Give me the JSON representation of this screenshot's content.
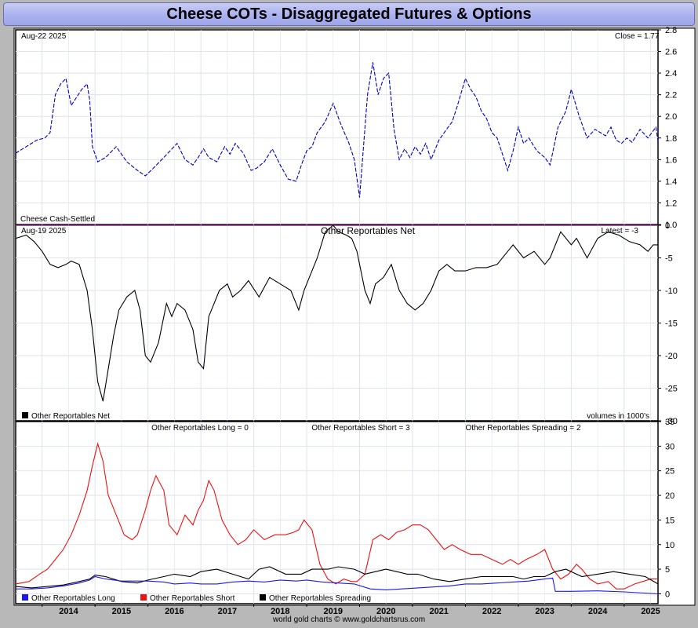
{
  "title": "Cheese COTs - Disaggregated Futures & Options",
  "footer": "world gold charts © www.goldchartsrus.com",
  "colors": {
    "price": "#0000c0",
    "net": "#000000",
    "long": "#1a1ae6",
    "short": "#ee1111",
    "spreading": "#000000",
    "zeroline": "#d040c0",
    "grid": "#dde2ec"
  },
  "chart_data": [
    {
      "type": "line",
      "id": "price",
      "date_label": "Aug-22  2025",
      "latest_label": "Close = 1.77",
      "legend": "Cheese Cash-Settled",
      "ylim": [
        1.0,
        2.8
      ],
      "yticks": [
        "1.0",
        "1.2",
        "1.4",
        "1.6",
        "1.8",
        "2.0",
        "2.2",
        "2.4",
        "2.6",
        "2.8"
      ],
      "series": [
        {
          "x": [
            2013.5,
            2013.7,
            2013.9,
            2014.05,
            2014.15,
            2014.25,
            2014.35,
            2014.45,
            2014.55,
            2014.75,
            2014.85,
            2014.9,
            2014.95,
            2015.05,
            2015.2,
            2015.4,
            2015.6,
            2015.8,
            2015.95,
            2016.1,
            2016.3,
            2016.55,
            2016.7,
            2016.85,
            2016.95,
            2017.05,
            2017.15,
            2017.3,
            2017.45,
            2017.55,
            2017.65,
            2017.8,
            2017.95,
            2018.05,
            2018.2,
            2018.35,
            2018.5,
            2018.65,
            2018.8,
            2018.9,
            2019.0,
            2019.1,
            2019.2,
            2019.35,
            2019.5,
            2019.65,
            2019.8,
            2019.9,
            2020.0,
            2020.15,
            2020.25,
            2020.35,
            2020.45,
            2020.55,
            2020.65,
            2020.75,
            2020.85,
            2020.95,
            2021.05,
            2021.15,
            2021.25,
            2021.35,
            2021.5,
            2021.6,
            2021.75,
            2021.85,
            2022.0,
            2022.1,
            2022.2,
            2022.3,
            2022.4,
            2022.5,
            2022.6,
            2022.7,
            2022.8,
            2022.9,
            2023.0,
            2023.1,
            2023.2,
            2023.35,
            2023.5,
            2023.6,
            2023.75,
            2023.9,
            2024.0,
            2024.15,
            2024.3,
            2024.45,
            2024.55,
            2024.65,
            2024.75,
            2024.85,
            2024.95,
            2025.05,
            2025.15,
            2025.3,
            2025.45,
            2025.6,
            2025.64
          ],
          "y": [
            1.66,
            1.72,
            1.78,
            1.8,
            1.85,
            2.2,
            2.3,
            2.35,
            2.1,
            2.25,
            2.3,
            2.15,
            1.72,
            1.58,
            1.62,
            1.72,
            1.58,
            1.5,
            1.45,
            1.52,
            1.62,
            1.75,
            1.6,
            1.55,
            1.62,
            1.7,
            1.62,
            1.58,
            1.72,
            1.65,
            1.75,
            1.66,
            1.5,
            1.52,
            1.58,
            1.7,
            1.55,
            1.42,
            1.4,
            1.55,
            1.68,
            1.72,
            1.85,
            1.95,
            2.12,
            1.92,
            1.75,
            1.6,
            1.25,
            2.2,
            2.5,
            2.2,
            2.35,
            2.4,
            1.88,
            1.6,
            1.7,
            1.62,
            1.72,
            1.65,
            1.75,
            1.6,
            1.78,
            1.85,
            1.95,
            2.1,
            2.35,
            2.25,
            2.18,
            2.05,
            1.98,
            1.85,
            1.8,
            1.65,
            1.5,
            1.68,
            1.9,
            1.75,
            1.8,
            1.68,
            1.62,
            1.55,
            1.9,
            2.05,
            2.25,
            2.0,
            1.8,
            1.88,
            1.85,
            1.82,
            1.9,
            1.78,
            1.75,
            1.8,
            1.76,
            1.88,
            1.8,
            1.9,
            1.77
          ]
        }
      ]
    },
    {
      "type": "line",
      "id": "net",
      "title": "Other Reportables Net",
      "date_label": "Aug-19  2025",
      "latest_label": "Latest = -3",
      "legend": "Other Reportables Net",
      "right_label": "volumes in 1000's",
      "ylim": [
        -30,
        0
      ],
      "yticks": [
        "0",
        "-5",
        "-10",
        "-15",
        "-20",
        "-25",
        "-30"
      ],
      "series": [
        {
          "x": [
            2013.5,
            2013.7,
            2013.85,
            2014.0,
            2014.15,
            2014.3,
            2014.45,
            2014.55,
            2014.7,
            2014.85,
            2014.95,
            2015.05,
            2015.15,
            2015.25,
            2015.35,
            2015.45,
            2015.6,
            2015.75,
            2015.85,
            2015.95,
            2016.05,
            2016.2,
            2016.35,
            2016.45,
            2016.55,
            2016.7,
            2016.85,
            2016.95,
            2017.05,
            2017.15,
            2017.25,
            2017.35,
            2017.5,
            2017.6,
            2017.75,
            2017.9,
            2018.1,
            2018.3,
            2018.5,
            2018.7,
            2018.85,
            2018.95,
            2019.1,
            2019.2,
            2019.35,
            2019.5,
            2019.6,
            2019.75,
            2019.85,
            2019.95,
            2020.1,
            2020.2,
            2020.3,
            2020.45,
            2020.6,
            2020.75,
            2020.9,
            2021.05,
            2021.2,
            2021.35,
            2021.5,
            2021.65,
            2021.8,
            2022.0,
            2022.2,
            2022.4,
            2022.6,
            2022.8,
            2022.9,
            2023.1,
            2023.3,
            2023.5,
            2023.6,
            2023.8,
            2024.0,
            2024.1,
            2024.3,
            2024.5,
            2024.7,
            2024.9,
            2025.1,
            2025.3,
            2025.45,
            2025.55,
            2025.64
          ],
          "y": [
            -2,
            -1.5,
            -2.5,
            -4,
            -6,
            -6.5,
            -6,
            -5.5,
            -6,
            -10,
            -16,
            -24,
            -27,
            -22,
            -17,
            -13,
            -11,
            -10,
            -13,
            -20,
            -21,
            -18,
            -12,
            -14,
            -12,
            -13,
            -16,
            -21,
            -22,
            -14,
            -12,
            -10,
            -9,
            -11,
            -10,
            -8.5,
            -11,
            -8,
            -9,
            -10,
            -13,
            -10,
            -7,
            -5,
            -1,
            0,
            -1,
            -1.5,
            -2,
            -4,
            -10,
            -12,
            -9,
            -8,
            -6,
            -10,
            -12,
            -13,
            -12,
            -10,
            -7,
            -6,
            -7,
            -7,
            -6.5,
            -6.5,
            -6,
            -4,
            -3,
            -5,
            -4,
            -6,
            -5,
            -1,
            -3,
            -2,
            -5,
            -2,
            -1,
            -1.5,
            -2.5,
            -3,
            -4,
            -3,
            -3
          ]
        }
      ]
    },
    {
      "type": "line",
      "id": "components",
      "headers": [
        "Other Reportables Long = 0",
        "Other Reportables Short = 3",
        "Other Reportables Spreading = 2"
      ],
      "legend": [
        "Other Reportables Long",
        "Other Reportables Short",
        "Other Reportables Spreading"
      ],
      "ylim": [
        -2,
        35
      ],
      "yticks": [
        "0",
        "5",
        "10",
        "15",
        "20",
        "25",
        "30",
        "35"
      ],
      "xticks": [
        "2014",
        "2015",
        "2016",
        "2017",
        "2018",
        "2019",
        "2020",
        "2021",
        "2022",
        "2023",
        "2024",
        "2025"
      ],
      "series": [
        {
          "name": "Other Reportables Long",
          "x": [
            2013.5,
            2013.8,
            2014.1,
            2014.4,
            2014.7,
            2014.9,
            2015.0,
            2015.2,
            2015.5,
            2015.8,
            2016.0,
            2016.3,
            2016.5,
            2016.8,
            2017.0,
            2017.3,
            2017.6,
            2017.9,
            2018.2,
            2018.5,
            2018.8,
            2019.0,
            2019.3,
            2019.6,
            2019.9,
            2020.2,
            2020.5,
            2020.8,
            2021.1,
            2021.4,
            2021.7,
            2022.0,
            2022.3,
            2022.6,
            2022.9,
            2023.2,
            2023.5,
            2023.65,
            2023.7,
            2024.0,
            2024.5,
            2025.0,
            2025.64
          ],
          "y": [
            1.0,
            1.0,
            1.2,
            1.6,
            2.2,
            2.8,
            3.5,
            3.0,
            2.6,
            2.6,
            2.6,
            2.4,
            2.0,
            2.2,
            2.0,
            2.0,
            2.4,
            2.6,
            2.4,
            2.8,
            2.6,
            2.8,
            2.4,
            2.2,
            2.0,
            1.0,
            0.8,
            1.0,
            1.2,
            1.4,
            1.6,
            2.0,
            2.0,
            2.2,
            2.4,
            2.6,
            3.0,
            3.2,
            0.5,
            0.5,
            0.6,
            0.4,
            0.0
          ]
        },
        {
          "name": "Other Reportables Short",
          "x": [
            2013.5,
            2013.75,
            2013.95,
            2014.1,
            2014.25,
            2014.4,
            2014.55,
            2014.7,
            2014.85,
            2014.95,
            2015.05,
            2015.15,
            2015.25,
            2015.4,
            2015.55,
            2015.7,
            2015.8,
            2015.95,
            2016.05,
            2016.15,
            2016.3,
            2016.4,
            2016.55,
            2016.7,
            2016.85,
            2016.95,
            2017.05,
            2017.15,
            2017.25,
            2017.4,
            2017.55,
            2017.7,
            2017.85,
            2018.0,
            2018.2,
            2018.4,
            2018.6,
            2018.75,
            2018.85,
            2018.95,
            2019.1,
            2019.25,
            2019.4,
            2019.55,
            2019.7,
            2019.85,
            2019.95,
            2020.1,
            2020.25,
            2020.4,
            2020.55,
            2020.7,
            2020.85,
            2021.0,
            2021.15,
            2021.3,
            2021.45,
            2021.6,
            2021.75,
            2021.9,
            2022.1,
            2022.3,
            2022.5,
            2022.7,
            2022.85,
            2023.0,
            2023.15,
            2023.35,
            2023.5,
            2023.65,
            2023.8,
            2023.95,
            2024.1,
            2024.2,
            2024.35,
            2024.5,
            2024.7,
            2024.85,
            2025.0,
            2025.2,
            2025.35,
            2025.5,
            2025.64
          ],
          "y": [
            2.0,
            2.5,
            4.0,
            5.0,
            7.0,
            9.0,
            12.0,
            16.0,
            21.0,
            26.0,
            30.5,
            27.0,
            20.0,
            16.0,
            12.0,
            11.0,
            12.0,
            17.0,
            21.0,
            24.0,
            21.0,
            14.0,
            12.0,
            16.0,
            14.0,
            17.0,
            19.0,
            23.0,
            21.0,
            15.0,
            12.0,
            10.0,
            11.0,
            13.0,
            11.0,
            12.0,
            12.0,
            12.5,
            13.0,
            15.0,
            13.0,
            6.0,
            3.0,
            2.0,
            3.0,
            2.5,
            2.5,
            4.0,
            11.0,
            12.0,
            11.0,
            12.5,
            13.0,
            14.0,
            14.0,
            13.0,
            11.0,
            9.0,
            10.0,
            9.0,
            8.0,
            8.0,
            7.0,
            6.0,
            7.0,
            6.0,
            7.0,
            8.0,
            9.0,
            5.0,
            3.0,
            4.0,
            6.0,
            5.0,
            3.0,
            2.0,
            2.5,
            1.0,
            1.0,
            2.0,
            2.5,
            3.0,
            3.0
          ]
        },
        {
          "name": "Other Reportables Spreading",
          "x": [
            2013.5,
            2013.8,
            2014.1,
            2014.4,
            2014.7,
            2014.9,
            2015.0,
            2015.2,
            2015.5,
            2015.8,
            2016.0,
            2016.3,
            2016.5,
            2016.8,
            2017.0,
            2017.3,
            2017.6,
            2017.9,
            2018.1,
            2018.3,
            2018.6,
            2018.9,
            2019.1,
            2019.4,
            2019.6,
            2019.9,
            2020.1,
            2020.3,
            2020.5,
            2020.7,
            2020.9,
            2021.1,
            2021.4,
            2021.7,
            2022.0,
            2022.3,
            2022.6,
            2022.9,
            2023.1,
            2023.3,
            2023.5,
            2023.7,
            2023.9,
            2024.2,
            2024.5,
            2024.8,
            2025.1,
            2025.4,
            2025.64
          ],
          "y": [
            1.5,
            1.2,
            1.5,
            1.8,
            2.5,
            3.0,
            3.8,
            3.5,
            2.5,
            2.2,
            2.8,
            3.5,
            4.0,
            3.5,
            4.5,
            5.0,
            4.0,
            3.0,
            5.0,
            5.5,
            4.0,
            4.0,
            5.0,
            5.0,
            5.5,
            5.0,
            4.0,
            4.5,
            5.0,
            4.5,
            4.0,
            4.0,
            3.0,
            2.5,
            3.0,
            3.5,
            3.5,
            3.5,
            3.0,
            3.5,
            3.5,
            4.5,
            5.0,
            3.5,
            4.0,
            4.5,
            4.0,
            3.5,
            2.0
          ]
        }
      ]
    }
  ]
}
